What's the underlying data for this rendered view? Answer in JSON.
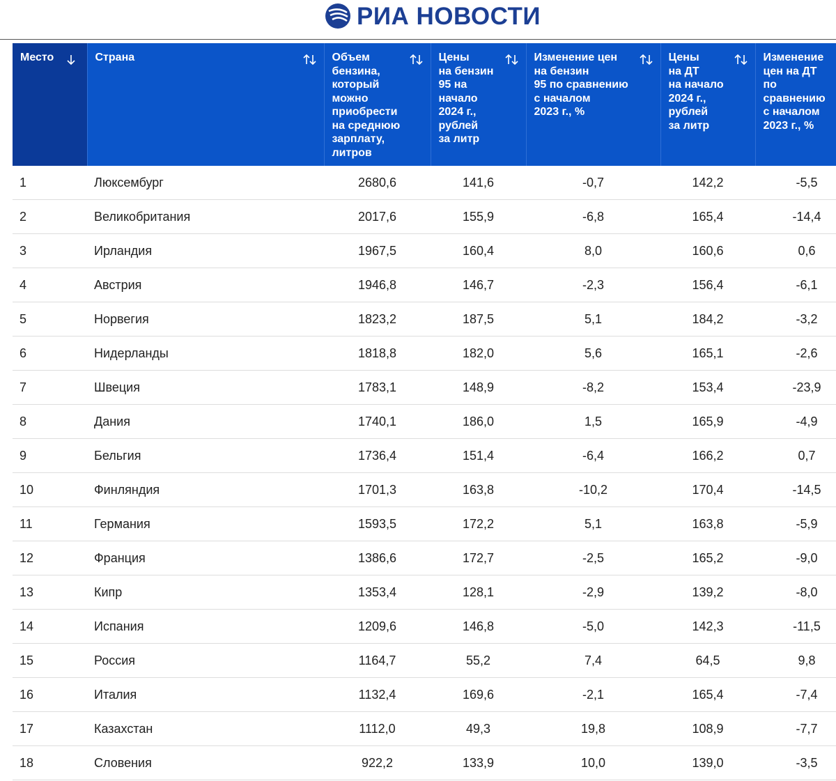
{
  "header": {
    "logo": "РИА НОВОСТИ"
  },
  "table": {
    "columns": [
      [
        "Место"
      ],
      [
        "Страна"
      ],
      [
        "Объем",
        "бензина,",
        "который",
        "можно",
        "приобрести",
        "на среднюю",
        "зарплату,",
        "литров"
      ],
      [
        "Цены",
        "на бензин",
        "95 на",
        "начало",
        "2024 г.,",
        "рублей",
        "за литр"
      ],
      [
        "Изменение цен",
        "на бензин",
        "95 по сравнению",
        "с началом",
        "2023 г., %"
      ],
      [
        "Цены",
        "на ДТ",
        "на начало",
        "2024 г.,",
        "рублей",
        "за литр"
      ],
      [
        "Изменение",
        "цен на ДТ",
        "по",
        "сравнению",
        "с началом",
        "2023 г., %"
      ]
    ],
    "rows": [
      [
        "1",
        "Люксембург",
        "2680,6",
        "141,6",
        "-0,7",
        "142,2",
        "-5,5"
      ],
      [
        "2",
        "Великобритания",
        "2017,6",
        "155,9",
        "-6,8",
        "165,4",
        "-14,4"
      ],
      [
        "3",
        "Ирландия",
        "1967,5",
        "160,4",
        "8,0",
        "160,6",
        "0,6"
      ],
      [
        "4",
        "Австрия",
        "1946,8",
        "146,7",
        "-2,3",
        "156,4",
        "-6,1"
      ],
      [
        "5",
        "Норвегия",
        "1823,2",
        "187,5",
        "5,1",
        "184,2",
        "-3,2"
      ],
      [
        "6",
        "Нидерланды",
        "1818,8",
        "182,0",
        "5,6",
        "165,1",
        "-2,6"
      ],
      [
        "7",
        "Швеция",
        "1783,1",
        "148,9",
        "-8,2",
        "153,4",
        "-23,9"
      ],
      [
        "8",
        "Дания",
        "1740,1",
        "186,0",
        "1,5",
        "165,9",
        "-4,9"
      ],
      [
        "9",
        "Бельгия",
        "1736,4",
        "151,4",
        "-6,4",
        "166,2",
        "0,7"
      ],
      [
        "10",
        "Финляндия",
        "1701,3",
        "163,8",
        "-10,2",
        "170,4",
        "-14,5"
      ],
      [
        "11",
        "Германия",
        "1593,5",
        "172,2",
        "5,1",
        "163,8",
        "-5,9"
      ],
      [
        "12",
        "Франция",
        "1386,6",
        "172,7",
        "-2,5",
        "165,2",
        "-9,0"
      ],
      [
        "13",
        "Кипр",
        "1353,4",
        "128,1",
        "-2,9",
        "139,2",
        "-8,0"
      ],
      [
        "14",
        "Испания",
        "1209,6",
        "146,8",
        "-5,0",
        "142,3",
        "-11,5"
      ],
      [
        "15",
        "Россия",
        "1164,7",
        "55,2",
        "7,4",
        "64,5",
        "9,8"
      ],
      [
        "16",
        "Италия",
        "1132,4",
        "169,6",
        "-2,1",
        "165,4",
        "-7,4"
      ],
      [
        "17",
        "Казахстан",
        "1112,0",
        "49,3",
        "19,8",
        "108,9",
        "-7,7"
      ],
      [
        "18",
        "Словения",
        "922,2",
        "133,9",
        "10,0",
        "139,0",
        "-3,5"
      ]
    ]
  }
}
